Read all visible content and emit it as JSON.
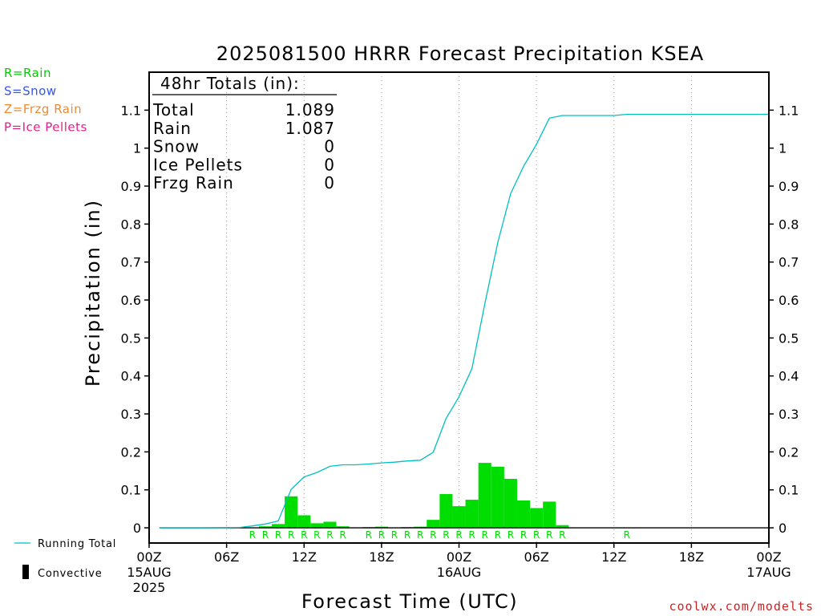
{
  "chart_data": {
    "type": "bar",
    "title": "2025081500 HRRR Forecast Precipitation KSEA",
    "xlabel": "Forecast Time (UTC)",
    "ylabel": "Precipitation (in)",
    "ylim": [
      -0.04,
      1.2
    ],
    "yticks": [
      0,
      0.1,
      0.2,
      0.3,
      0.4,
      0.5,
      0.6,
      0.7,
      0.8,
      0.9,
      1,
      1.1
    ],
    "ytick_labels": [
      "0",
      "0.1",
      "0.2",
      "0.3",
      "0.4",
      "0.5",
      "0.6",
      "0.7",
      "0.8",
      "0.9",
      "1",
      "1.1"
    ],
    "xlim": [
      0,
      48
    ],
    "xticks": [
      {
        "hour": 0,
        "label": "00Z",
        "sub1": "15AUG",
        "sub2": "2025"
      },
      {
        "hour": 6,
        "label": "06Z",
        "sub1": "",
        "sub2": ""
      },
      {
        "hour": 12,
        "label": "12Z",
        "sub1": "",
        "sub2": ""
      },
      {
        "hour": 18,
        "label": "18Z",
        "sub1": "",
        "sub2": ""
      },
      {
        "hour": 24,
        "label": "00Z",
        "sub1": "16AUG",
        "sub2": ""
      },
      {
        "hour": 30,
        "label": "06Z",
        "sub1": "",
        "sub2": ""
      },
      {
        "hour": 36,
        "label": "12Z",
        "sub1": "",
        "sub2": ""
      },
      {
        "hour": 42,
        "label": "18Z",
        "sub1": "",
        "sub2": ""
      },
      {
        "hour": 48,
        "label": "00Z",
        "sub1": "17AUG",
        "sub2": ""
      }
    ],
    "grid_hours": [
      6,
      12,
      18,
      24,
      30,
      36,
      42
    ],
    "series": [
      {
        "name": "Convective",
        "type": "bar",
        "color": "#00dd00",
        "hours": [
          8,
          9,
          10,
          11,
          12,
          13,
          14,
          15,
          17,
          18,
          19,
          20,
          21,
          22,
          23,
          24,
          25,
          26,
          27,
          28,
          29,
          30,
          31,
          32
        ],
        "values": [
          0.001,
          0.004,
          0.01,
          0.083,
          0.033,
          0.012,
          0.016,
          0.004,
          0.002,
          0.003,
          0.001,
          0.002,
          0.003,
          0.021,
          0.089,
          0.057,
          0.074,
          0.171,
          0.161,
          0.129,
          0.072,
          0.052,
          0.069,
          0.007
        ]
      },
      {
        "name": "Running Total",
        "type": "line",
        "color": "#00c0c0",
        "hours": [
          0,
          4,
          7,
          8,
          9,
          10,
          11,
          12,
          13,
          14,
          15,
          16,
          17,
          18,
          19,
          20,
          21,
          22,
          23,
          24,
          25,
          26,
          27,
          28,
          29,
          30,
          31,
          32,
          33,
          35,
          36,
          37,
          38,
          40,
          44,
          48
        ],
        "values": [
          0,
          0,
          0.001,
          0.005,
          0.01,
          0.018,
          0.101,
          0.134,
          0.146,
          0.162,
          0.166,
          0.166,
          0.168,
          0.171,
          0.173,
          0.176,
          0.178,
          0.199,
          0.288,
          0.345,
          0.419,
          0.59,
          0.751,
          0.88,
          0.952,
          1.01,
          1.079,
          1.086,
          1.086,
          1.086,
          1.086,
          1.089,
          1.089,
          1.089,
          1.089,
          1.089
        ]
      }
    ],
    "ptype_markers": {
      "color": "#00dd00",
      "letter": "R",
      "hours": [
        8,
        9,
        10,
        11,
        12,
        13,
        14,
        15,
        17,
        18,
        19,
        20,
        21,
        22,
        23,
        24,
        25,
        26,
        27,
        28,
        29,
        30,
        31,
        32,
        37
      ]
    },
    "totals": {
      "heading": "48hr Totals (in):",
      "rows": [
        {
          "label": "Total",
          "value": "1.089"
        },
        {
          "label": "Rain",
          "value": "1.087"
        },
        {
          "label": "Snow",
          "value": "0"
        },
        {
          "label": "Ice Pellets",
          "value": "0"
        },
        {
          "label": "Frzg Rain",
          "value": "0"
        }
      ]
    },
    "ptype_legend": [
      {
        "text": "R=Rain",
        "color": "#00cc00"
      },
      {
        "text": "S=Snow",
        "color": "#3355ee"
      },
      {
        "text": "Z=Frzg Rain",
        "color": "#f08a30"
      },
      {
        "text": "P=Ice Pellets",
        "color": "#e0208a"
      }
    ],
    "legend": {
      "line_label": "Running Total",
      "bar_label": "Convective"
    },
    "credit": "coolwx.com/modelts",
    "credit_color": "#cc2222"
  }
}
